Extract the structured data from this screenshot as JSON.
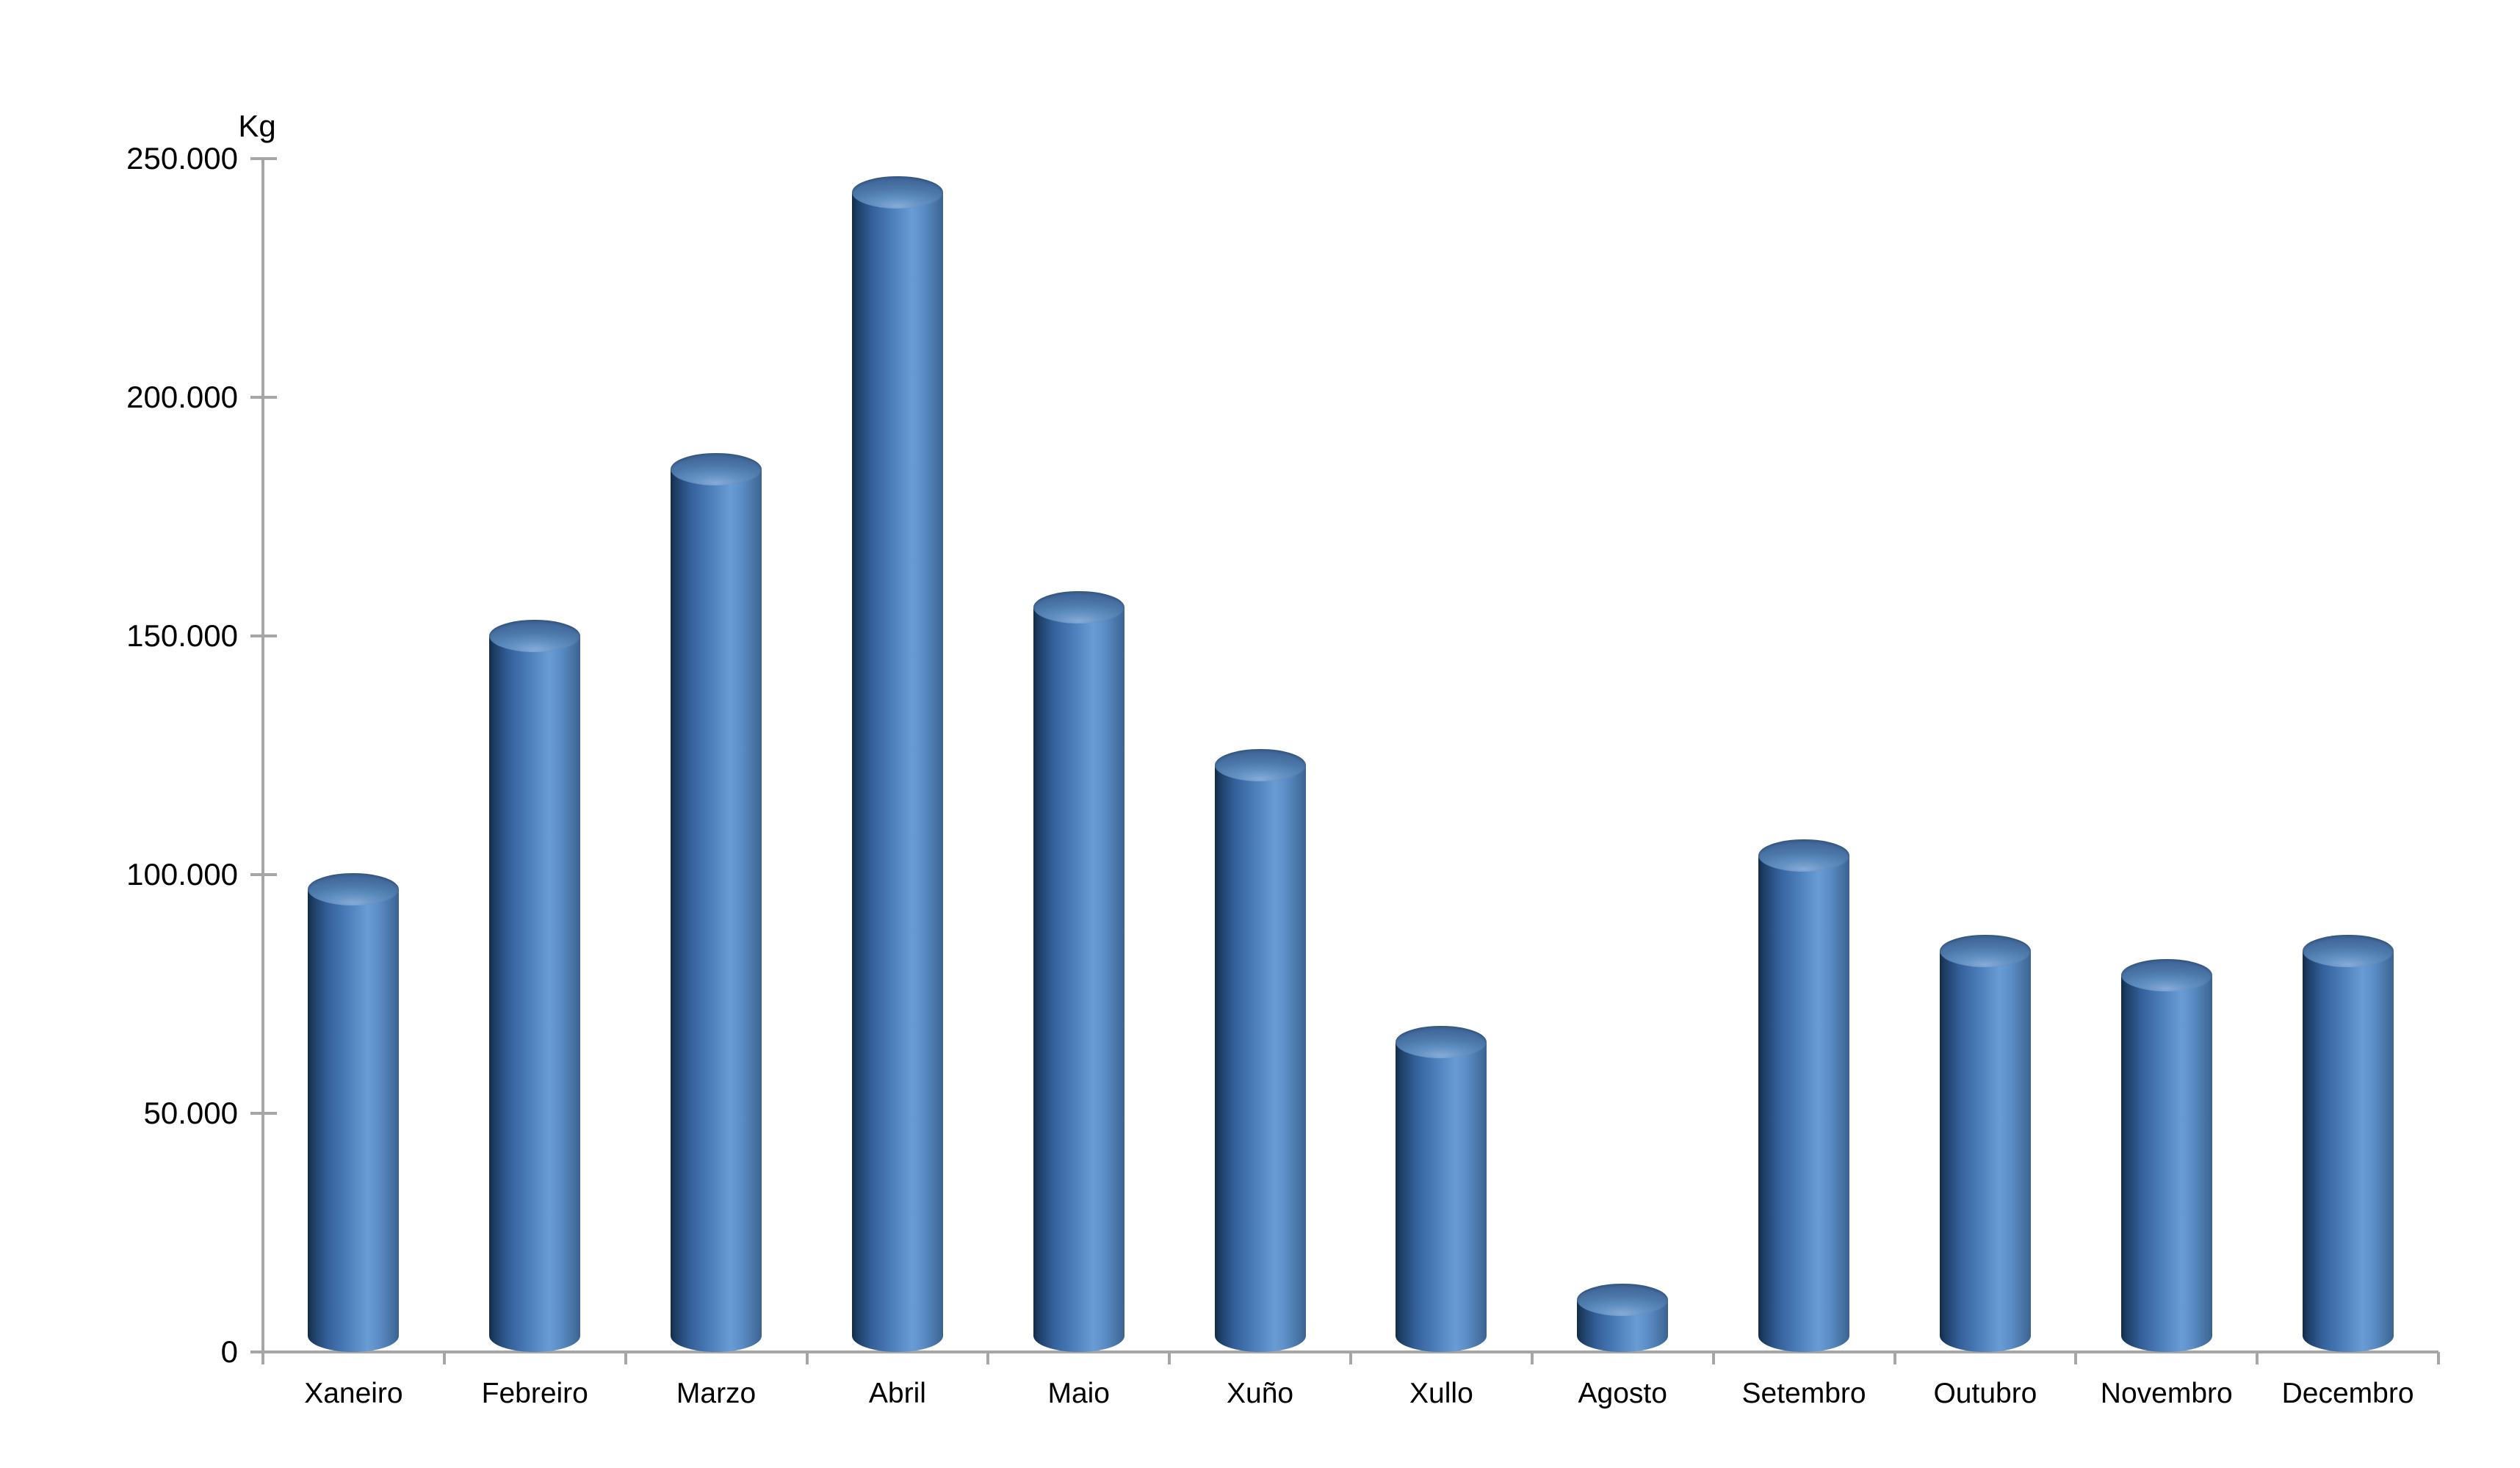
{
  "chart_data": {
    "type": "bar",
    "subtype": "cylinder-3d",
    "title": "",
    "ylabel": "Kg",
    "xlabel": "",
    "categories": [
      "Xaneiro",
      "Febreiro",
      "Marzo",
      "Abril",
      "Maio",
      "Xuño",
      "Xullo",
      "Agosto",
      "Setembro",
      "Outubro",
      "Novembro",
      "Decembro"
    ],
    "values": [
      97000,
      150000,
      185000,
      243000,
      156000,
      123000,
      65000,
      11000,
      104000,
      84000,
      79000,
      84000
    ],
    "ylim": [
      0,
      250000
    ],
    "ytick_step": 50000,
    "ytick_labels": [
      "0",
      "50.000",
      "100.000",
      "150.000",
      "200.000",
      "250.000"
    ],
    "grid": false,
    "legend": false,
    "bar_color": "#4F81BD",
    "bar_edge_dark": "#132c47",
    "bar_highlight": "#699bd4",
    "axis_color": "#A6A6A6",
    "text_color": "#000000",
    "background": "#FFFFFF"
  }
}
